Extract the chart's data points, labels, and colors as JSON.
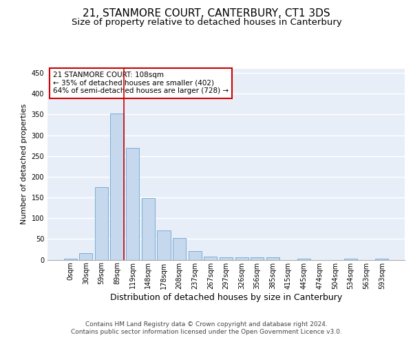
{
  "title": "21, STANMORE COURT, CANTERBURY, CT1 3DS",
  "subtitle": "Size of property relative to detached houses in Canterbury",
  "xlabel": "Distribution of detached houses by size in Canterbury",
  "ylabel": "Number of detached properties",
  "bar_labels": [
    "0sqm",
    "30sqm",
    "59sqm",
    "89sqm",
    "119sqm",
    "148sqm",
    "178sqm",
    "208sqm",
    "237sqm",
    "267sqm",
    "297sqm",
    "326sqm",
    "356sqm",
    "385sqm",
    "415sqm",
    "445sqm",
    "474sqm",
    "504sqm",
    "534sqm",
    "563sqm",
    "593sqm"
  ],
  "bar_values": [
    2,
    16,
    175,
    352,
    270,
    148,
    70,
    53,
    20,
    8,
    5,
    6,
    5,
    6,
    0,
    2,
    0,
    0,
    2,
    0,
    2
  ],
  "bar_color": "#c5d8ed",
  "bar_edgecolor": "#7aadd4",
  "background_color": "#e8eef8",
  "grid_color": "#ffffff",
  "red_line_x": 3.45,
  "red_line_color": "#cc0000",
  "annotation_text": "21 STANMORE COURT: 108sqm\n← 35% of detached houses are smaller (402)\n64% of semi-detached houses are larger (728) →",
  "annotation_box_color": "#ffffff",
  "annotation_box_edgecolor": "#cc0000",
  "ylim": [
    0,
    460
  ],
  "yticks": [
    0,
    50,
    100,
    150,
    200,
    250,
    300,
    350,
    400,
    450
  ],
  "footer_text": "Contains HM Land Registry data © Crown copyright and database right 2024.\nContains public sector information licensed under the Open Government Licence v3.0.",
  "title_fontsize": 11,
  "subtitle_fontsize": 9.5,
  "xlabel_fontsize": 9,
  "ylabel_fontsize": 8,
  "tick_fontsize": 7,
  "annotation_fontsize": 7.5,
  "footer_fontsize": 6.5
}
